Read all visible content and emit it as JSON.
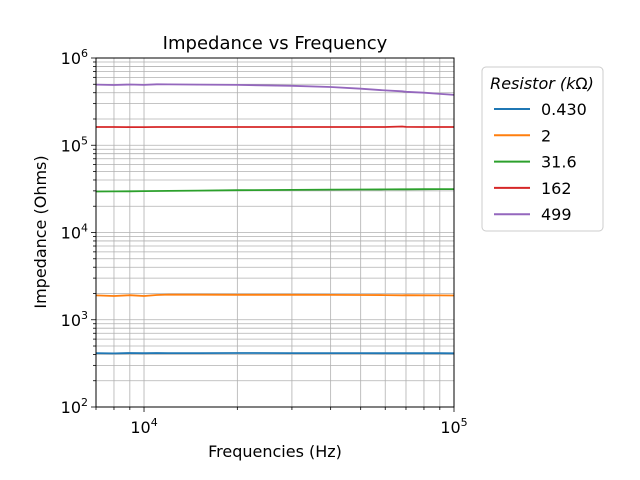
{
  "chart_data": {
    "type": "line",
    "title": "Impedance vs Frequency",
    "xlabel": "Frequencies (Hz)",
    "ylabel": "Impedance (Ohms)",
    "x_scale": "log",
    "y_scale": "log",
    "xlim": [
      7000,
      100000
    ],
    "ylim": [
      100,
      1000000
    ],
    "x_major_ticks": [
      {
        "value": 10000,
        "base": "10",
        "exp": "4"
      },
      {
        "value": 100000,
        "base": "10",
        "exp": "5"
      }
    ],
    "y_major_ticks": [
      {
        "value": 100,
        "base": "10",
        "exp": "2"
      },
      {
        "value": 1000,
        "base": "10",
        "exp": "3"
      },
      {
        "value": 10000,
        "base": "10",
        "exp": "4"
      },
      {
        "value": 100000,
        "base": "10",
        "exp": "5"
      },
      {
        "value": 1000000,
        "base": "10",
        "exp": "6"
      }
    ],
    "grid": "major and minor",
    "legend": {
      "title_text": "Resistor (k",
      "title_symbol": "Ω",
      "title_close": ")",
      "placement": "outside-right"
    },
    "x": [
      7000,
      8000,
      9000,
      10000,
      11000,
      12000,
      15000,
      20000,
      30000,
      40000,
      50000,
      60000,
      68000,
      70000,
      80000,
      90000,
      100000
    ],
    "series": [
      {
        "name": "0.430",
        "color": "#1f77b4",
        "values": [
          415,
          412,
          416,
          414,
          416,
          415,
          415,
          416,
          415,
          415,
          415,
          414,
          414,
          414,
          414,
          414,
          413
        ]
      },
      {
        "name": "2",
        "color": "#ff7f0e",
        "values": [
          1900,
          1870,
          1910,
          1870,
          1920,
          1940,
          1935,
          1930,
          1930,
          1925,
          1920,
          1915,
          1905,
          1910,
          1905,
          1900,
          1895
        ]
      },
      {
        "name": "31.6",
        "color": "#2ca02c",
        "values": [
          29500,
          29600,
          29700,
          29800,
          29900,
          30000,
          30200,
          30500,
          30800,
          31000,
          31100,
          31200,
          31300,
          31300,
          31350,
          31400,
          31400
        ]
      },
      {
        "name": "162",
        "color": "#d62728",
        "values": [
          162000,
          162000,
          161500,
          161500,
          162000,
          162000,
          162000,
          162000,
          162000,
          162000,
          162000,
          162000,
          164000,
          162500,
          162000,
          162000,
          162000
        ]
      },
      {
        "name": "499",
        "color": "#9467bd",
        "values": [
          495000,
          490000,
          497000,
          492000,
          500000,
          498000,
          496000,
          492000,
          480000,
          465000,
          445000,
          425000,
          415000,
          410000,
          400000,
          388000,
          378000
        ]
      }
    ]
  }
}
